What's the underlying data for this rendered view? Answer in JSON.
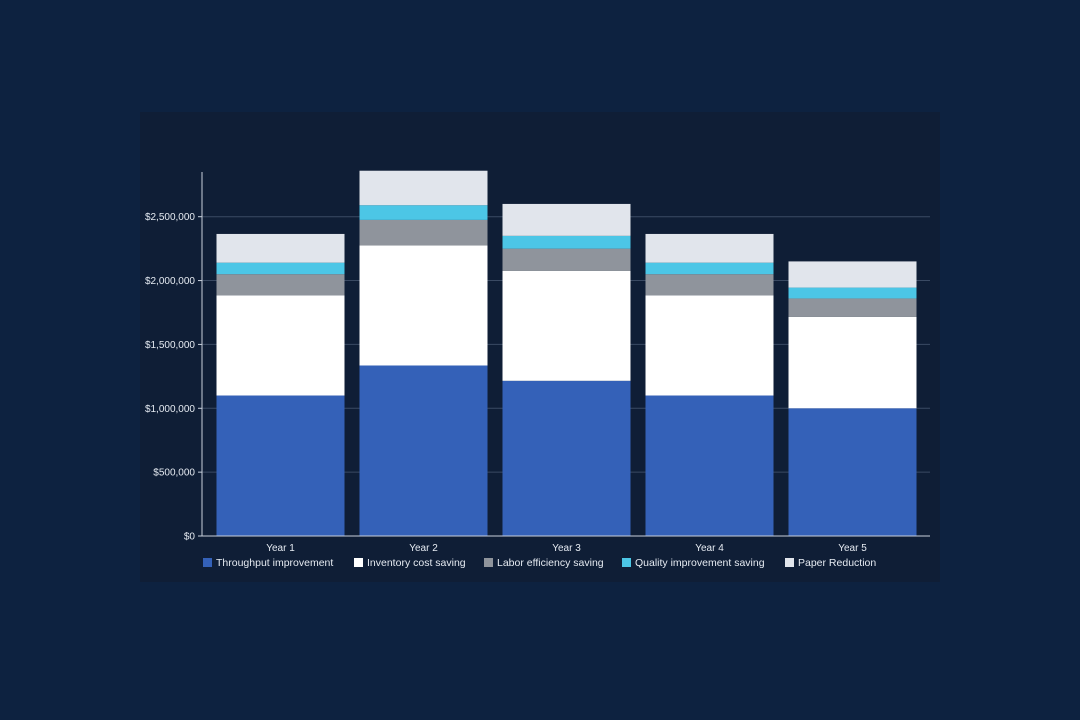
{
  "chart_data": {
    "type": "bar",
    "stacked": true,
    "categories": [
      "Year 1",
      "Year 2",
      "Year 3",
      "Year 4",
      "Year 5"
    ],
    "ylim": [
      0,
      2850000
    ],
    "yticks": [
      0,
      500000,
      1000000,
      1500000,
      2000000,
      2500000
    ],
    "ytick_labels": [
      "$0",
      "$500,000",
      "$1,000,000",
      "$1,500,000",
      "$2,000,000",
      "$2,500,000"
    ],
    "grid": true,
    "legend_position": "bottom",
    "series": [
      {
        "name": "Throughput improvement",
        "color": "#3461b8",
        "values": [
          1100000,
          1335000,
          1215000,
          1100000,
          1000000
        ]
      },
      {
        "name": "Inventory cost saving",
        "color": "#ffffff",
        "values": [
          785000,
          940000,
          860000,
          785000,
          715000
        ]
      },
      {
        "name": "Labor efficiency saving",
        "color": "#8f949c",
        "values": [
          165000,
          200000,
          175000,
          165000,
          145000
        ]
      },
      {
        "name": "Quality improvement saving",
        "color": "#4cc6e6",
        "values": [
          90000,
          115000,
          100000,
          90000,
          85000
        ]
      },
      {
        "name": "Paper Reduction",
        "color": "#e1e5ec",
        "values": [
          225000,
          270000,
          250000,
          225000,
          205000
        ]
      }
    ]
  }
}
